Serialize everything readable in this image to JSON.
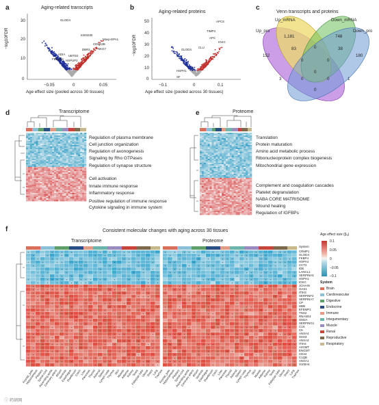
{
  "panels": {
    "a": {
      "letter": "a",
      "title": "Aging-related transcripts",
      "xlabel": "Age effect size (pooled across 30 tissues)",
      "ylabel": "−log10FDR",
      "yticks": [
        "0",
        "10",
        "20",
        "30"
      ],
      "xticks": [
        "−0.05",
        "0",
        "0.05"
      ],
      "labels": [
        "GLOD4",
        "KWS030",
        "Maxp-EPA1",
        "CDKN2B",
        "NKG7",
        "DBR1",
        "ADIA",
        "FBXO36",
        "UBTD2",
        "HSPUP2"
      ]
    },
    "b": {
      "letter": "b",
      "title": "Aging-related proteins",
      "xlabel": "Age effect size (pooled across 30 tissues)",
      "ylabel": "−log10FDR",
      "yticks": [
        "0",
        "10",
        "20",
        "30",
        "40",
        "50"
      ],
      "xticks": [
        "−0.1",
        "0",
        "0.1"
      ],
      "labels": [
        "APCS",
        "TIMP3",
        "APC",
        "IGKC",
        "CLU",
        "GLOD4",
        "HSPH1",
        "SF"
      ]
    },
    "c": {
      "letter": "c",
      "title": "Venn transcripts and proteins",
      "sets": [
        "Up_mRNA",
        "Down_mRNA",
        "Up_pro",
        "Down_pro"
      ],
      "counts": [
        "1,181",
        "748",
        "152",
        "180",
        "83",
        "0",
        "38",
        "0",
        "0",
        "0",
        "3",
        "0",
        "1",
        "0",
        "0"
      ]
    },
    "d": {
      "letter": "d",
      "title": "Transcriptome",
      "terms": [
        "Regulation of plasma membrane",
        "Cell junction organization",
        "Regulation of axonogenesis",
        "Signaling by Rho GTPases",
        "Regulation of synapse structure",
        "Cell activation",
        "Innate immune response",
        "Inflammatory response",
        "Positive regulation of immune response",
        "Cytokine signaling in immune system"
      ]
    },
    "e": {
      "letter": "e",
      "title": "Proteome",
      "terms": [
        "Translation",
        "Protein maturation",
        "Amino acid metabolic process",
        "Ribonucleoprotein complex biogenesis",
        "Mitochondrial gene expression",
        "Complement and coagulation cascades",
        "Platelet degranulation",
        "NABA CORE MATRISOME",
        "Wound healing",
        "Regulation of IGFBPs"
      ]
    },
    "f": {
      "letter": "f",
      "title": "Consistent molecular changes with aging across 30 tissues",
      "left_title": "Transcriptome",
      "right_title": "Proteome",
      "genes": [
        "System",
        "CRMP1",
        "GLOD4",
        "FKBP4",
        "HSPA4",
        "CCT2",
        "IDE",
        "LANCL1",
        "SERPINH1",
        "HSPH1",
        "IGKC",
        "JCHAIN",
        "OAS1",
        "ITIH3",
        "SERPINF2",
        "SERPINA7",
        "CP",
        "HBB",
        "EFEMP1",
        "TNS2",
        "RNASE4",
        "GM2A",
        "SERPING1",
        "C1S",
        "C5",
        "ANXA4",
        "SSH3",
        "ANXA3",
        "ITIH4",
        "A2GMT",
        "ENO3IT",
        "CD44",
        "C1QB",
        "ANXA1",
        "S100A4"
      ],
      "colorbar_title": "Age effect size (βₐ)",
      "colorbar_ticks": [
        "0.1",
        "0.05",
        "0",
        "−0.05",
        "−0.1"
      ],
      "system_title": "System",
      "systems": [
        {
          "name": "Brain",
          "color": "#d9705b"
        },
        {
          "name": "Cardiovascular",
          "color": "#8ac0d8"
        },
        {
          "name": "Digestive",
          "color": "#5fa06a"
        },
        {
          "name": "Endocrine",
          "color": "#2a4f84"
        },
        {
          "name": "Immune",
          "color": "#e59a86"
        },
        {
          "name": "Integumentary",
          "color": "#6bb5ad"
        },
        {
          "name": "Muscle",
          "color": "#9b8cc0"
        },
        {
          "name": "Renal",
          "color": "#c8433a"
        },
        {
          "name": "Reproductive",
          "color": "#7d6a4e"
        },
        {
          "name": "Respiratory",
          "color": "#c7b88c"
        }
      ],
      "tissues_left": [
        "Frontal_pole",
        "Hippocampus",
        "Pituitary",
        "Spinal cord",
        "Ascending aorta",
        "Coronary artery",
        "Atrium",
        "Ventricle",
        "Esophagus",
        "Duodenum",
        "Colon",
        "Liver",
        "Pancreas",
        "Thyroid",
        "Adrenal",
        "Spleen",
        "Lymph node",
        "Thymus",
        "Skin",
        "Muscle",
        "Adipose",
        "Kidney",
        "Testis",
        "Fallopian tube",
        "Uterus",
        "Ovary",
        "Lung",
        "Trachea"
      ],
      "tissues_right": [
        "Frontal_pole",
        "Hippocampus",
        "Pituitary",
        "Spinal cord",
        "Ascending aorta",
        "Coronary artery",
        "Atrium",
        "Ventricle",
        "Esophagus",
        "Duodenum",
        "Colon",
        "Liver",
        "Pancreas",
        "Thyroid",
        "Adrenal",
        "Spleen",
        "Lymph node",
        "Thymus",
        "Skin",
        "Muscle",
        "Adipose",
        "Kidney",
        "Testis",
        "Fallopian tube",
        "Uterus",
        "Ovary",
        "Lung",
        "Trachea"
      ]
    }
  },
  "watermark": "ⓘ 药研网"
}
